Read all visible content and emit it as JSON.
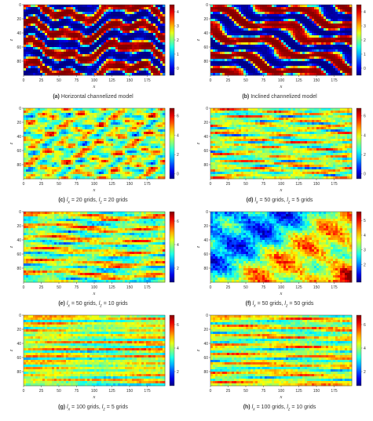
{
  "figure": {
    "panels": [
      {
        "letter": "(a)",
        "text": "Horizontal channelized model",
        "pattern": "hchannel",
        "ticks": [
          0,
          1,
          2,
          3,
          4
        ],
        "max": 4.5
      },
      {
        "letter": "(b)",
        "text": "Inclined channelized model",
        "pattern": "ichannel",
        "ticks": [
          0,
          1,
          2,
          3,
          4
        ],
        "max": 4.5
      },
      {
        "letter": "(c)",
        "lx": "20",
        "lz": "20",
        "pattern": "iso",
        "ticks": [
          0,
          2,
          4,
          6
        ],
        "max": 6.8
      },
      {
        "letter": "(d)",
        "lx": "50",
        "lz": "5",
        "pattern": "aniso",
        "ticks": [
          0,
          2,
          4,
          6
        ],
        "max": 6.8
      },
      {
        "letter": "(e)",
        "lx": "50",
        "lz": "10",
        "pattern": "aniso2",
        "ticks": [
          2,
          4,
          6
        ],
        "max": 6.8
      },
      {
        "letter": "(f)",
        "lx": "50",
        "lz": "50",
        "pattern": "big",
        "ticks": [
          2,
          3,
          4,
          5
        ],
        "max": 5.6
      },
      {
        "letter": "(g)",
        "lx": "100",
        "lz": "5",
        "pattern": "stripes",
        "ticks": [
          2,
          4,
          6
        ],
        "max": 6.8
      },
      {
        "letter": "(h)",
        "lx": "100",
        "lz": "10",
        "pattern": "stripes2",
        "ticks": [
          2,
          4,
          6
        ],
        "max": 6.8
      }
    ],
    "grid_suffix": " grids",
    "x_label": "x",
    "z_label": "z",
    "x_ticks": [
      "0",
      "25",
      "50",
      "75",
      "100",
      "125",
      "150",
      "175"
    ],
    "z_ticks": [
      "0",
      "20",
      "40",
      "60",
      "80"
    ]
  },
  "chart_data": [
    {
      "type": "heatmap",
      "title": "(a) Horizontal channelized model",
      "xlabel": "x",
      "ylabel": "z",
      "xlim": [
        0,
        200
      ],
      "ylim": [
        100,
        0
      ],
      "colorbar": [
        0,
        1,
        2,
        3,
        4
      ]
    },
    {
      "type": "heatmap",
      "title": "(b) Inclined channelized model",
      "xlabel": "x",
      "ylabel": "z",
      "xlim": [
        0,
        200
      ],
      "ylim": [
        100,
        0
      ],
      "colorbar": [
        0,
        1,
        2,
        3,
        4
      ]
    },
    {
      "type": "heatmap",
      "title": "(c) lx = 20 grids, lz = 20 grids",
      "xlabel": "x",
      "ylabel": "z",
      "xlim": [
        0,
        200
      ],
      "ylim": [
        100,
        0
      ],
      "colorbar": [
        0,
        2,
        4,
        6
      ]
    },
    {
      "type": "heatmap",
      "title": "(d) lx = 50 grids, lz = 5 grids",
      "xlabel": "x",
      "ylabel": "z",
      "xlim": [
        0,
        200
      ],
      "ylim": [
        100,
        0
      ],
      "colorbar": [
        0,
        2,
        4,
        6
      ]
    },
    {
      "type": "heatmap",
      "title": "(e) lx = 50 grids, lz = 10 grids",
      "xlabel": "x",
      "ylabel": "z",
      "xlim": [
        0,
        200
      ],
      "ylim": [
        100,
        0
      ],
      "colorbar": [
        2,
        4,
        6
      ]
    },
    {
      "type": "heatmap",
      "title": "(f) lx = 50 grids, lz = 50 grids",
      "xlabel": "x",
      "ylabel": "z",
      "xlim": [
        0,
        200
      ],
      "ylim": [
        100,
        0
      ],
      "colorbar": [
        2,
        3,
        4,
        5
      ]
    },
    {
      "type": "heatmap",
      "title": "(g) lx = 100 grids, lz = 5 grids",
      "xlabel": "x",
      "ylabel": "z",
      "xlim": [
        0,
        200
      ],
      "ylim": [
        100,
        0
      ],
      "colorbar": [
        2,
        4,
        6
      ]
    },
    {
      "type": "heatmap",
      "title": "(h) lx = 100 grids, lz = 10 grids",
      "xlabel": "x",
      "ylabel": "z",
      "xlim": [
        0,
        200
      ],
      "ylim": [
        100,
        0
      ],
      "colorbar": [
        2,
        4,
        6
      ]
    }
  ]
}
